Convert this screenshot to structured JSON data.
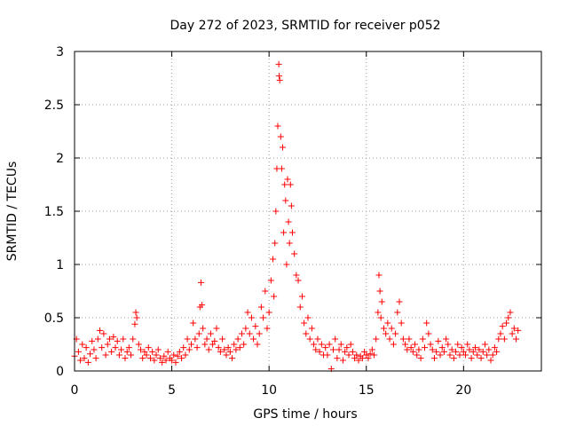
{
  "chart_data": {
    "type": "scatter",
    "title": "Day 272 of 2023, SRMTID for receiver p052",
    "xlabel": "GPS time / hours",
    "ylabel": "SRMTID / TECUs",
    "xlim": [
      0,
      24
    ],
    "ylim": [
      0,
      3
    ],
    "x_ticks": [
      0,
      5,
      10,
      15,
      20
    ],
    "x_tick_labels": [
      "0",
      "5",
      "10",
      "15",
      "20"
    ],
    "y_ticks": [
      0,
      0.5,
      1,
      1.5,
      2,
      2.5,
      3
    ],
    "y_tick_labels": [
      "0",
      "0.5",
      "1",
      "1.5",
      "2",
      "2.5",
      "3"
    ],
    "grid": true,
    "marker": "plus",
    "color": "#ff0000",
    "series": [
      {
        "name": "SRMTID",
        "points": [
          [
            0.0,
            0.14
          ],
          [
            0.1,
            0.3
          ],
          [
            0.2,
            0.18
          ],
          [
            0.3,
            0.1
          ],
          [
            0.4,
            0.25
          ],
          [
            0.5,
            0.12
          ],
          [
            0.6,
            0.22
          ],
          [
            0.7,
            0.08
          ],
          [
            0.8,
            0.16
          ],
          [
            0.9,
            0.28
          ],
          [
            1.0,
            0.2
          ],
          [
            1.1,
            0.12
          ],
          [
            1.2,
            0.3
          ],
          [
            1.3,
            0.38
          ],
          [
            1.4,
            0.22
          ],
          [
            1.5,
            0.35
          ],
          [
            1.6,
            0.15
          ],
          [
            1.7,
            0.25
          ],
          [
            1.8,
            0.3
          ],
          [
            1.9,
            0.18
          ],
          [
            2.0,
            0.32
          ],
          [
            2.1,
            0.22
          ],
          [
            2.2,
            0.28
          ],
          [
            2.3,
            0.15
          ],
          [
            2.4,
            0.2
          ],
          [
            2.5,
            0.3
          ],
          [
            2.6,
            0.12
          ],
          [
            2.7,
            0.18
          ],
          [
            2.8,
            0.22
          ],
          [
            2.9,
            0.15
          ],
          [
            3.0,
            0.3
          ],
          [
            3.1,
            0.44
          ],
          [
            3.15,
            0.55
          ],
          [
            3.2,
            0.5
          ],
          [
            3.3,
            0.25
          ],
          [
            3.4,
            0.2
          ],
          [
            3.5,
            0.12
          ],
          [
            3.6,
            0.18
          ],
          [
            3.7,
            0.15
          ],
          [
            3.8,
            0.22
          ],
          [
            3.9,
            0.12
          ],
          [
            4.0,
            0.18
          ],
          [
            4.1,
            0.1
          ],
          [
            4.2,
            0.15
          ],
          [
            4.3,
            0.2
          ],
          [
            4.4,
            0.12
          ],
          [
            4.5,
            0.08
          ],
          [
            4.6,
            0.14
          ],
          [
            4.7,
            0.1
          ],
          [
            4.8,
            0.18
          ],
          [
            4.9,
            0.12
          ],
          [
            5.0,
            0.1
          ],
          [
            5.1,
            0.15
          ],
          [
            5.2,
            0.08
          ],
          [
            5.3,
            0.14
          ],
          [
            5.4,
            0.18
          ],
          [
            5.5,
            0.12
          ],
          [
            5.6,
            0.22
          ],
          [
            5.7,
            0.15
          ],
          [
            5.8,
            0.3
          ],
          [
            5.9,
            0.2
          ],
          [
            6.0,
            0.25
          ],
          [
            6.1,
            0.45
          ],
          [
            6.2,
            0.3
          ],
          [
            6.3,
            0.22
          ],
          [
            6.4,
            0.35
          ],
          [
            6.45,
            0.6
          ],
          [
            6.5,
            0.83
          ],
          [
            6.55,
            0.62
          ],
          [
            6.6,
            0.4
          ],
          [
            6.7,
            0.25
          ],
          [
            6.8,
            0.3
          ],
          [
            6.9,
            0.2
          ],
          [
            7.0,
            0.35
          ],
          [
            7.1,
            0.25
          ],
          [
            7.2,
            0.28
          ],
          [
            7.3,
            0.4
          ],
          [
            7.4,
            0.22
          ],
          [
            7.5,
            0.18
          ],
          [
            7.6,
            0.3
          ],
          [
            7.7,
            0.2
          ],
          [
            7.8,
            0.15
          ],
          [
            7.9,
            0.22
          ],
          [
            8.0,
            0.18
          ],
          [
            8.1,
            0.12
          ],
          [
            8.2,
            0.25
          ],
          [
            8.3,
            0.2
          ],
          [
            8.4,
            0.3
          ],
          [
            8.5,
            0.22
          ],
          [
            8.6,
            0.35
          ],
          [
            8.7,
            0.25
          ],
          [
            8.8,
            0.4
          ],
          [
            8.9,
            0.55
          ],
          [
            9.0,
            0.35
          ],
          [
            9.1,
            0.5
          ],
          [
            9.2,
            0.3
          ],
          [
            9.3,
            0.42
          ],
          [
            9.4,
            0.25
          ],
          [
            9.5,
            0.35
          ],
          [
            9.6,
            0.6
          ],
          [
            9.7,
            0.5
          ],
          [
            9.8,
            0.75
          ],
          [
            9.9,
            0.4
          ],
          [
            10.0,
            0.55
          ],
          [
            10.1,
            0.85
          ],
          [
            10.2,
            1.05
          ],
          [
            10.25,
            0.7
          ],
          [
            10.3,
            1.2
          ],
          [
            10.35,
            1.5
          ],
          [
            10.4,
            1.9
          ],
          [
            10.45,
            2.3
          ],
          [
            10.5,
            2.88
          ],
          [
            10.52,
            2.77
          ],
          [
            10.55,
            2.73
          ],
          [
            10.6,
            2.2
          ],
          [
            10.65,
            1.9
          ],
          [
            10.7,
            2.1
          ],
          [
            10.75,
            1.3
          ],
          [
            10.8,
            1.75
          ],
          [
            10.85,
            1.6
          ],
          [
            10.9,
            1.0
          ],
          [
            10.95,
            1.8
          ],
          [
            11.0,
            1.4
          ],
          [
            11.05,
            1.2
          ],
          [
            11.1,
            1.75
          ],
          [
            11.15,
            1.55
          ],
          [
            11.2,
            1.3
          ],
          [
            11.3,
            1.1
          ],
          [
            11.4,
            0.9
          ],
          [
            11.5,
            0.85
          ],
          [
            11.6,
            0.6
          ],
          [
            11.7,
            0.7
          ],
          [
            11.8,
            0.45
          ],
          [
            11.9,
            0.35
          ],
          [
            12.0,
            0.5
          ],
          [
            12.1,
            0.3
          ],
          [
            12.2,
            0.4
          ],
          [
            12.3,
            0.25
          ],
          [
            12.4,
            0.2
          ],
          [
            12.5,
            0.3
          ],
          [
            12.6,
            0.18
          ],
          [
            12.7,
            0.25
          ],
          [
            12.8,
            0.15
          ],
          [
            12.9,
            0.22
          ],
          [
            13.0,
            0.15
          ],
          [
            13.1,
            0.25
          ],
          [
            13.2,
            0.02
          ],
          [
            13.3,
            0.2
          ],
          [
            13.4,
            0.3
          ],
          [
            13.5,
            0.12
          ],
          [
            13.6,
            0.2
          ],
          [
            13.7,
            0.25
          ],
          [
            13.8,
            0.1
          ],
          [
            13.9,
            0.18
          ],
          [
            14.0,
            0.22
          ],
          [
            14.1,
            0.15
          ],
          [
            14.2,
            0.25
          ],
          [
            14.3,
            0.18
          ],
          [
            14.4,
            0.12
          ],
          [
            14.5,
            0.15
          ],
          [
            14.6,
            0.1
          ],
          [
            14.7,
            0.14
          ],
          [
            14.8,
            0.12
          ],
          [
            14.9,
            0.18
          ],
          [
            15.0,
            0.15
          ],
          [
            15.1,
            0.12
          ],
          [
            15.2,
            0.16
          ],
          [
            15.3,
            0.2
          ],
          [
            15.4,
            0.15
          ],
          [
            15.5,
            0.3
          ],
          [
            15.6,
            0.55
          ],
          [
            15.65,
            0.9
          ],
          [
            15.7,
            0.75
          ],
          [
            15.75,
            0.5
          ],
          [
            15.8,
            0.65
          ],
          [
            15.9,
            0.4
          ],
          [
            16.0,
            0.35
          ],
          [
            16.1,
            0.45
          ],
          [
            16.2,
            0.3
          ],
          [
            16.3,
            0.4
          ],
          [
            16.4,
            0.25
          ],
          [
            16.5,
            0.35
          ],
          [
            16.6,
            0.55
          ],
          [
            16.7,
            0.65
          ],
          [
            16.8,
            0.45
          ],
          [
            16.9,
            0.3
          ],
          [
            17.0,
            0.25
          ],
          [
            17.1,
            0.2
          ],
          [
            17.2,
            0.3
          ],
          [
            17.3,
            0.22
          ],
          [
            17.4,
            0.18
          ],
          [
            17.5,
            0.25
          ],
          [
            17.6,
            0.15
          ],
          [
            17.7,
            0.2
          ],
          [
            17.8,
            0.12
          ],
          [
            17.9,
            0.3
          ],
          [
            18.0,
            0.22
          ],
          [
            18.1,
            0.45
          ],
          [
            18.2,
            0.35
          ],
          [
            18.3,
            0.25
          ],
          [
            18.4,
            0.2
          ],
          [
            18.5,
            0.12
          ],
          [
            18.6,
            0.18
          ],
          [
            18.7,
            0.28
          ],
          [
            18.8,
            0.15
          ],
          [
            18.9,
            0.22
          ],
          [
            19.0,
            0.18
          ],
          [
            19.1,
            0.3
          ],
          [
            19.2,
            0.25
          ],
          [
            19.3,
            0.15
          ],
          [
            19.4,
            0.2
          ],
          [
            19.5,
            0.12
          ],
          [
            19.6,
            0.18
          ],
          [
            19.7,
            0.25
          ],
          [
            19.8,
            0.15
          ],
          [
            19.9,
            0.22
          ],
          [
            20.0,
            0.18
          ],
          [
            20.1,
            0.15
          ],
          [
            20.2,
            0.25
          ],
          [
            20.3,
            0.2
          ],
          [
            20.4,
            0.12
          ],
          [
            20.5,
            0.18
          ],
          [
            20.6,
            0.22
          ],
          [
            20.7,
            0.15
          ],
          [
            20.8,
            0.2
          ],
          [
            20.9,
            0.12
          ],
          [
            21.0,
            0.18
          ],
          [
            21.1,
            0.25
          ],
          [
            21.2,
            0.15
          ],
          [
            21.3,
            0.2
          ],
          [
            21.4,
            0.1
          ],
          [
            21.5,
            0.15
          ],
          [
            21.6,
            0.22
          ],
          [
            21.7,
            0.18
          ],
          [
            21.8,
            0.3
          ],
          [
            21.9,
            0.35
          ],
          [
            22.0,
            0.42
          ],
          [
            22.1,
            0.3
          ],
          [
            22.2,
            0.45
          ],
          [
            22.3,
            0.5
          ],
          [
            22.4,
            0.55
          ],
          [
            22.5,
            0.35
          ],
          [
            22.6,
            0.4
          ],
          [
            22.7,
            0.3
          ],
          [
            22.8,
            0.38
          ]
        ]
      }
    ]
  }
}
